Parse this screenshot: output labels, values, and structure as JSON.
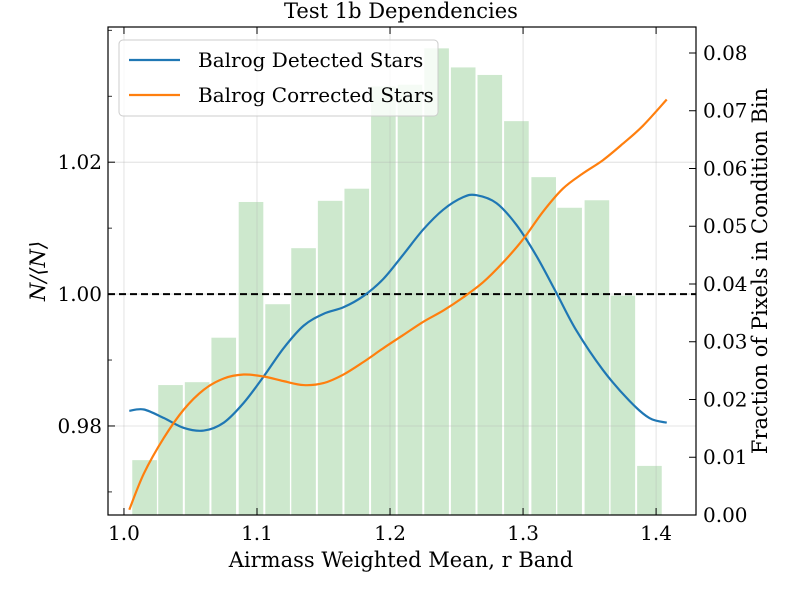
{
  "chart_data": {
    "type": "bar+line",
    "title": "Test 1b Dependencies",
    "xlabel": "Airmass Weighted Mean, r Band",
    "ylabel_left": "N/⟨N⟩",
    "ylabel_right": "Fraction of Pixels in Condition Bin",
    "xlim": [
      0.988,
      1.43
    ],
    "ylim_left": [
      0.9665,
      1.0405
    ],
    "ylim_right": [
      0.0,
      0.0845
    ],
    "x_ticks": [
      1.0,
      1.1,
      1.2,
      1.3,
      1.4
    ],
    "x_tick_labels": [
      "1.0",
      "1.1",
      "1.2",
      "1.3",
      "1.4"
    ],
    "y_left_ticks": [
      0.98,
      1.0,
      1.02
    ],
    "y_left_tick_labels": [
      "0.98",
      "1.00",
      "1.02"
    ],
    "y_right_ticks": [
      0.0,
      0.01,
      0.02,
      0.03,
      0.04,
      0.05,
      0.06,
      0.07,
      0.08
    ],
    "y_right_tick_labels": [
      "0.00",
      "0.01",
      "0.02",
      "0.03",
      "0.04",
      "0.05",
      "0.06",
      "0.07",
      "0.08"
    ],
    "reference_line": {
      "y": 1.0,
      "style": "dashed",
      "color": "#000000"
    },
    "grid": true,
    "legend_position": "top-left",
    "histogram": {
      "color": "#2ca02c",
      "bin_width": 0.0185,
      "bin_centers": [
        1.0155,
        1.035,
        1.055,
        1.075,
        1.0955,
        1.1155,
        1.135,
        1.155,
        1.175,
        1.195,
        1.215,
        1.235,
        1.255,
        1.275,
        1.295,
        1.3155,
        1.335,
        1.3555,
        1.375,
        1.395
      ],
      "values": [
        0.0095,
        0.0225,
        0.023,
        0.0307,
        0.0542,
        0.0365,
        0.0462,
        0.0544,
        0.0565,
        0.0742,
        0.0745,
        0.0808,
        0.0775,
        0.0762,
        0.0682,
        0.0585,
        0.0532,
        0.0545,
        0.038,
        0.0085
      ]
    },
    "series": [
      {
        "name": "Balrog Detected Stars",
        "color": "#1f77b4",
        "x": [
          1.004,
          1.015,
          1.03,
          1.045,
          1.06,
          1.075,
          1.09,
          1.105,
          1.12,
          1.135,
          1.15,
          1.165,
          1.18,
          1.195,
          1.21,
          1.225,
          1.24,
          1.255,
          1.265,
          1.28,
          1.295,
          1.31,
          1.325,
          1.34,
          1.36,
          1.38,
          1.395,
          1.408
        ],
        "y": [
          0.9823,
          0.9825,
          0.9812,
          0.9797,
          0.9793,
          0.9805,
          0.9835,
          0.9875,
          0.9918,
          0.9952,
          0.997,
          0.998,
          0.9997,
          1.0023,
          1.006,
          1.0098,
          1.0128,
          1.0147,
          1.015,
          1.0138,
          1.0105,
          1.0058,
          1.0002,
          0.9945,
          0.9885,
          0.9838,
          0.9812,
          0.9805
        ]
      },
      {
        "name": "Balrog Corrected Stars",
        "color": "#ff7f0e",
        "x": [
          1.004,
          1.015,
          1.03,
          1.045,
          1.06,
          1.075,
          1.09,
          1.105,
          1.12,
          1.135,
          1.15,
          1.165,
          1.18,
          1.195,
          1.21,
          1.225,
          1.24,
          1.255,
          1.27,
          1.285,
          1.3,
          1.315,
          1.33,
          1.345,
          1.36,
          1.375,
          1.39,
          1.408
        ],
        "y": [
          0.9673,
          0.9728,
          0.9782,
          0.9825,
          0.9855,
          0.9872,
          0.9878,
          0.9875,
          0.9868,
          0.9862,
          0.9865,
          0.9878,
          0.9897,
          0.9918,
          0.9938,
          0.9958,
          0.9975,
          0.9995,
          1.0018,
          1.0048,
          1.0083,
          1.0125,
          1.016,
          1.0183,
          1.0203,
          1.0228,
          1.0255,
          1.0295
        ]
      }
    ]
  }
}
